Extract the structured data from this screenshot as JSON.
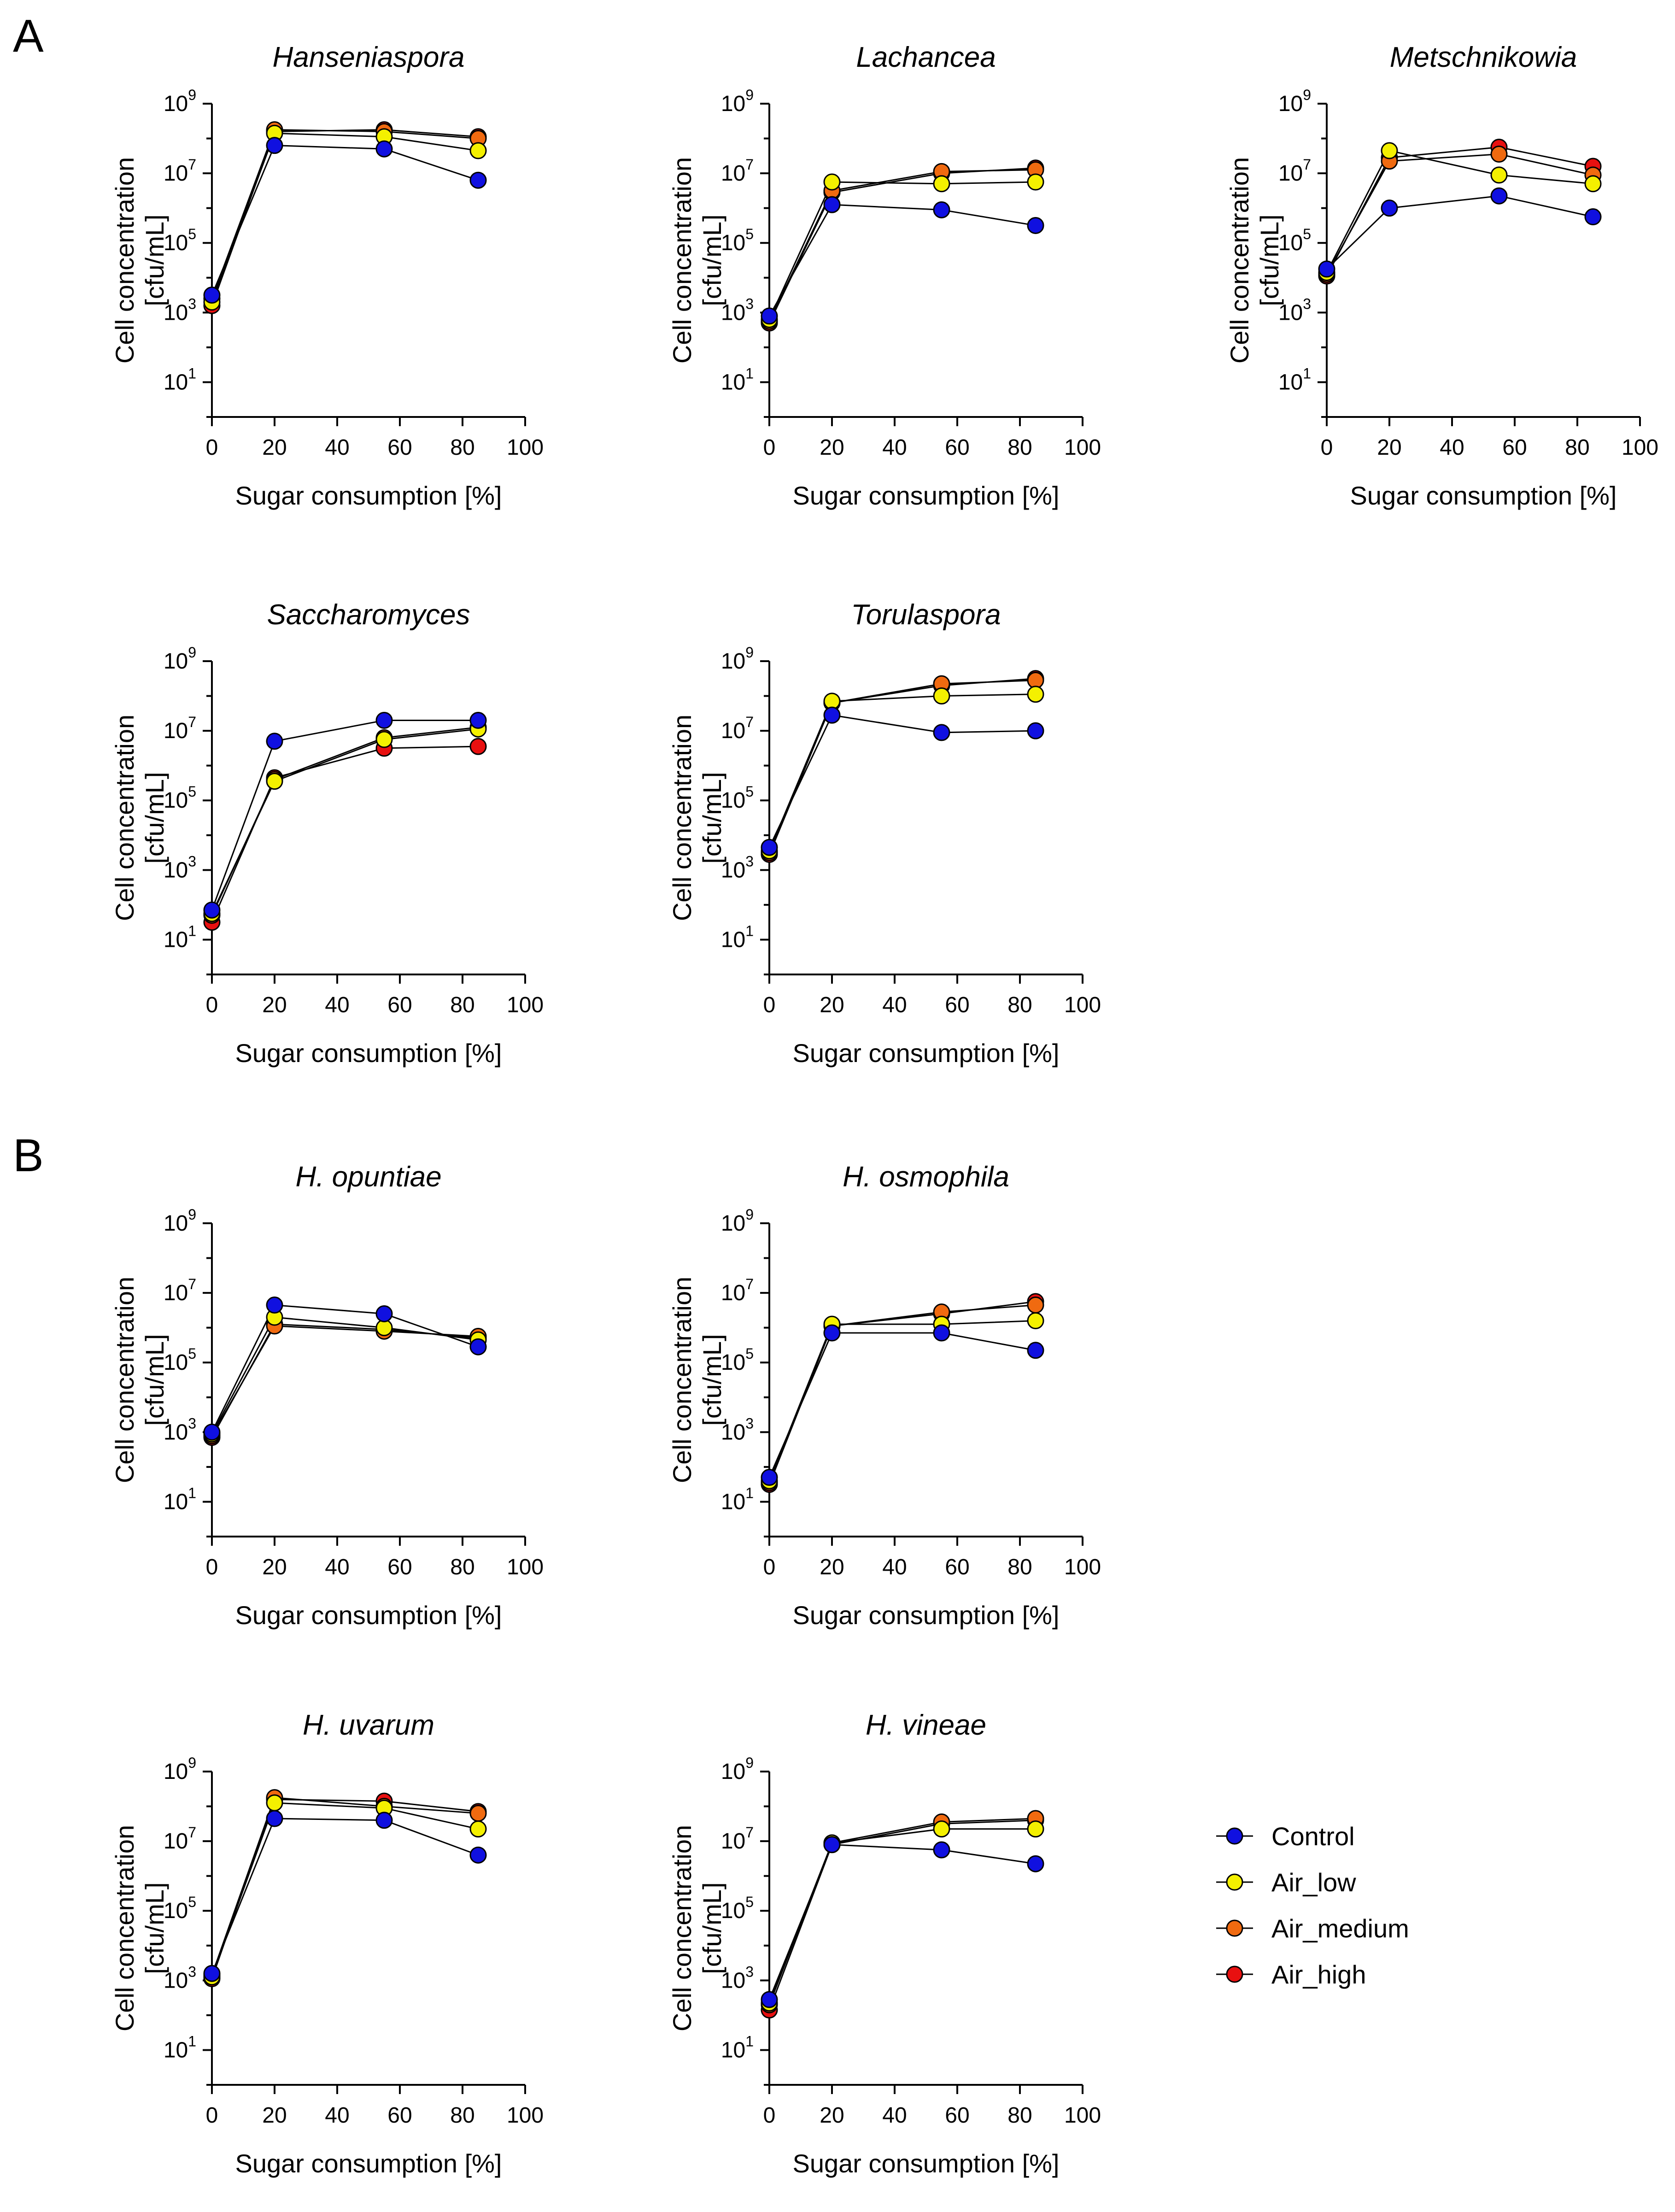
{
  "panel_labels": [
    "A",
    "B"
  ],
  "x_axis_label": "Sugar consumption [%]",
  "y_axis_label_line1": "Cell concentration",
  "y_axis_label_line2": "[cfu/mL]",
  "series_styles": [
    {
      "name": "Control",
      "color": "#1010e0"
    },
    {
      "name": "Air_low",
      "color": "#f4f000"
    },
    {
      "name": "Air_medium",
      "color": "#f06a10"
    },
    {
      "name": "Air_high",
      "color": "#e81010"
    }
  ],
  "legend": {
    "entries": [
      "Control",
      "Air_low",
      "Air_medium",
      "Air_high"
    ]
  },
  "chart_data": [
    {
      "type": "line",
      "title": "Hanseniaspora",
      "xlabel": "Sugar consumption [%]",
      "ylabel": "Cell concentration [cfu/mL]",
      "yscale": "log",
      "x": [
        0,
        20,
        55,
        85
      ],
      "xlim": [
        0,
        100
      ],
      "xticks": [
        0,
        20,
        40,
        60,
        80,
        100
      ],
      "ylim_exp": [
        0,
        9
      ],
      "yticks_exp": [
        1,
        3,
        5,
        7,
        9
      ],
      "series": [
        {
          "name": "Control",
          "log10_values": [
            3.5,
            7.8,
            7.7,
            6.8
          ]
        },
        {
          "name": "Air_low",
          "log10_values": [
            3.3,
            8.15,
            8.05,
            7.65
          ]
        },
        {
          "name": "Air_medium",
          "log10_values": [
            3.4,
            8.25,
            8.2,
            8.0
          ]
        },
        {
          "name": "Air_high",
          "log10_values": [
            3.2,
            8.2,
            8.25,
            8.05
          ]
        }
      ]
    },
    {
      "type": "line",
      "title": "Lachancea",
      "xlabel": "Sugar consumption [%]",
      "ylabel": "Cell concentration [cfu/mL]",
      "yscale": "log",
      "x": [
        0,
        20,
        55,
        85
      ],
      "xlim": [
        0,
        100
      ],
      "xticks": [
        0,
        20,
        40,
        60,
        80,
        100
      ],
      "ylim_exp": [
        0,
        9
      ],
      "yticks_exp": [
        1,
        3,
        5,
        7,
        9
      ],
      "series": [
        {
          "name": "Control",
          "log10_values": [
            2.9,
            6.1,
            5.95,
            5.5
          ]
        },
        {
          "name": "Air_low",
          "log10_values": [
            2.8,
            6.75,
            6.7,
            6.75
          ]
        },
        {
          "name": "Air_medium",
          "log10_values": [
            2.75,
            6.5,
            7.05,
            7.1
          ]
        },
        {
          "name": "Air_high",
          "log10_values": [
            2.7,
            6.45,
            7.0,
            7.15
          ]
        }
      ]
    },
    {
      "type": "line",
      "title": "Metschnikowia",
      "xlabel": "Sugar consumption [%]",
      "ylabel": "Cell concentration [cfu/mL]",
      "yscale": "log",
      "x": [
        0,
        20,
        55,
        85
      ],
      "xlim": [
        0,
        100
      ],
      "xticks": [
        0,
        20,
        40,
        60,
        80,
        100
      ],
      "ylim_exp": [
        0,
        9
      ],
      "yticks_exp": [
        1,
        3,
        5,
        7,
        9
      ],
      "series": [
        {
          "name": "Control",
          "log10_values": [
            4.25,
            6.0,
            6.35,
            5.75
          ]
        },
        {
          "name": "Air_low",
          "log10_values": [
            4.15,
            7.65,
            6.95,
            6.7
          ]
        },
        {
          "name": "Air_medium",
          "log10_values": [
            4.1,
            7.35,
            7.55,
            6.95
          ]
        },
        {
          "name": "Air_high",
          "log10_values": [
            4.05,
            7.45,
            7.75,
            7.2
          ]
        }
      ]
    },
    {
      "type": "line",
      "title": "Saccharomyces",
      "xlabel": "Sugar consumption [%]",
      "ylabel": "Cell concentration [cfu/mL]",
      "yscale": "log",
      "x": [
        0,
        20,
        55,
        85
      ],
      "xlim": [
        0,
        100
      ],
      "xticks": [
        0,
        20,
        40,
        60,
        80,
        100
      ],
      "ylim_exp": [
        0,
        9
      ],
      "yticks_exp": [
        1,
        3,
        5,
        7,
        9
      ],
      "series": [
        {
          "name": "Control",
          "log10_values": [
            1.85,
            6.7,
            7.3,
            7.3
          ]
        },
        {
          "name": "Air_low",
          "log10_values": [
            1.75,
            5.55,
            6.75,
            7.05
          ]
        },
        {
          "name": "Air_medium",
          "log10_values": [
            1.7,
            5.6,
            6.8,
            7.1
          ]
        },
        {
          "name": "Air_high",
          "log10_values": [
            1.5,
            5.65,
            6.5,
            6.55
          ]
        }
      ]
    },
    {
      "type": "line",
      "title": "Torulaspora",
      "xlabel": "Sugar consumption [%]",
      "ylabel": "Cell concentration [cfu/mL]",
      "yscale": "log",
      "x": [
        0,
        20,
        55,
        85
      ],
      "xlim": [
        0,
        100
      ],
      "xticks": [
        0,
        20,
        40,
        60,
        80,
        100
      ],
      "ylim_exp": [
        0,
        9
      ],
      "yticks_exp": [
        1,
        3,
        5,
        7,
        9
      ],
      "series": [
        {
          "name": "Control",
          "log10_values": [
            3.65,
            7.45,
            6.95,
            7.0
          ]
        },
        {
          "name": "Air_low",
          "log10_values": [
            3.55,
            7.85,
            8.0,
            8.05
          ]
        },
        {
          "name": "Air_medium",
          "log10_values": [
            3.5,
            7.8,
            8.35,
            8.45
          ]
        },
        {
          "name": "Air_high",
          "log10_values": [
            3.45,
            7.8,
            8.3,
            8.5
          ]
        }
      ]
    },
    {
      "type": "line",
      "title": "H. opuntiae",
      "xlabel": "Sugar consumption [%]",
      "ylabel": "Cell concentration [cfu/mL]",
      "yscale": "log",
      "x": [
        0,
        20,
        55,
        85
      ],
      "xlim": [
        0,
        100
      ],
      "xticks": [
        0,
        20,
        40,
        60,
        80,
        100
      ],
      "ylim_exp": [
        0,
        9
      ],
      "yticks_exp": [
        1,
        3,
        5,
        7,
        9
      ],
      "series": [
        {
          "name": "Control",
          "log10_values": [
            3.0,
            6.65,
            6.4,
            5.45
          ]
        },
        {
          "name": "Air_low",
          "log10_values": [
            2.95,
            6.3,
            6.0,
            5.65
          ]
        },
        {
          "name": "Air_medium",
          "log10_values": [
            2.9,
            6.05,
            5.9,
            5.75
          ]
        },
        {
          "name": "Air_high",
          "log10_values": [
            2.85,
            6.1,
            5.95,
            5.7
          ]
        }
      ]
    },
    {
      "type": "line",
      "title": "H. osmophila",
      "xlabel": "Sugar consumption [%]",
      "ylabel": "Cell concentration [cfu/mL]",
      "yscale": "log",
      "x": [
        0,
        20,
        55,
        85
      ],
      "xlim": [
        0,
        100
      ],
      "xticks": [
        0,
        20,
        40,
        60,
        80,
        100
      ],
      "ylim_exp": [
        0,
        9
      ],
      "yticks_exp": [
        1,
        3,
        5,
        7,
        9
      ],
      "series": [
        {
          "name": "Control",
          "log10_values": [
            1.7,
            5.85,
            5.85,
            5.35
          ]
        },
        {
          "name": "Air_low",
          "log10_values": [
            1.6,
            6.1,
            6.1,
            6.2
          ]
        },
        {
          "name": "Air_medium",
          "log10_values": [
            1.55,
            6.05,
            6.45,
            6.65
          ]
        },
        {
          "name": "Air_high",
          "log10_values": [
            1.5,
            6.05,
            6.4,
            6.75
          ]
        }
      ]
    },
    {
      "type": "line",
      "title": "H. uvarum",
      "xlabel": "Sugar consumption [%]",
      "ylabel": "Cell concentration [cfu/mL]",
      "yscale": "log",
      "x": [
        0,
        20,
        55,
        85
      ],
      "xlim": [
        0,
        100
      ],
      "xticks": [
        0,
        20,
        40,
        60,
        80,
        100
      ],
      "ylim_exp": [
        0,
        9
      ],
      "yticks_exp": [
        1,
        3,
        5,
        7,
        9
      ],
      "series": [
        {
          "name": "Control",
          "log10_values": [
            3.2,
            7.65,
            7.6,
            6.6
          ]
        },
        {
          "name": "Air_low",
          "log10_values": [
            3.1,
            8.1,
            7.95,
            7.35
          ]
        },
        {
          "name": "Air_medium",
          "log10_values": [
            3.15,
            8.25,
            8.0,
            7.8
          ]
        },
        {
          "name": "Air_high",
          "log10_values": [
            3.05,
            8.2,
            8.15,
            7.85
          ]
        }
      ]
    },
    {
      "type": "line",
      "title": "H. vineae",
      "xlabel": "Sugar consumption [%]",
      "ylabel": "Cell concentration [cfu/mL]",
      "yscale": "log",
      "x": [
        0,
        20,
        55,
        85
      ],
      "xlim": [
        0,
        100
      ],
      "xticks": [
        0,
        20,
        40,
        60,
        80,
        100
      ],
      "ylim_exp": [
        0,
        9
      ],
      "yticks_exp": [
        1,
        3,
        5,
        7,
        9
      ],
      "series": [
        {
          "name": "Control",
          "log10_values": [
            2.45,
            6.9,
            6.75,
            6.35
          ]
        },
        {
          "name": "Air_low",
          "log10_values": [
            2.35,
            6.95,
            7.35,
            7.35
          ]
        },
        {
          "name": "Air_medium",
          "log10_values": [
            2.3,
            6.95,
            7.55,
            7.65
          ]
        },
        {
          "name": "Air_high",
          "log10_values": [
            2.15,
            6.9,
            7.5,
            7.6
          ]
        }
      ]
    }
  ]
}
